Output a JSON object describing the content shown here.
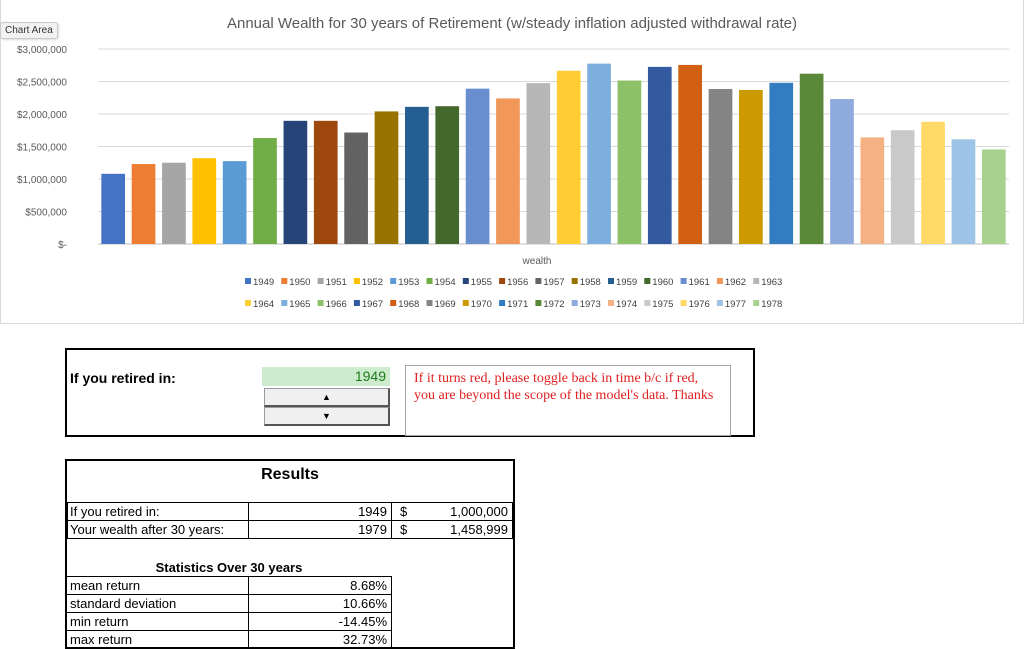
{
  "chart_area_tag": "Chart Area",
  "chart_data": {
    "type": "bar",
    "title": "Annual Wealth for 30 years of Retirement (w/steady inflation adjusted withdrawal rate)",
    "xlabel": "wealth",
    "ylabel": "",
    "ylim": [
      0,
      3000000
    ],
    "y_ticks": [
      "$3,000,000",
      "$2,500,000",
      "$2,000,000",
      "$1,500,000",
      "$1,000,000",
      "$500,000",
      "$-"
    ],
    "y_tick_values": [
      3000000,
      2500000,
      2000000,
      1500000,
      1000000,
      500000,
      0
    ],
    "grid": true,
    "legend_position": "bottom",
    "series": [
      {
        "name": "1949",
        "value": 1080000,
        "color": "#4472c4"
      },
      {
        "name": "1950",
        "value": 1230000,
        "color": "#ed7d31"
      },
      {
        "name": "1951",
        "value": 1250000,
        "color": "#a5a5a5"
      },
      {
        "name": "1952",
        "value": 1320000,
        "color": "#ffc000"
      },
      {
        "name": "1953",
        "value": 1275000,
        "color": "#5b9bd5"
      },
      {
        "name": "1954",
        "value": 1630000,
        "color": "#70ad47"
      },
      {
        "name": "1955",
        "value": 1895000,
        "color": "#264478"
      },
      {
        "name": "1956",
        "value": 1895000,
        "color": "#9e480e"
      },
      {
        "name": "1957",
        "value": 1715000,
        "color": "#636363"
      },
      {
        "name": "1958",
        "value": 2040000,
        "color": "#997300"
      },
      {
        "name": "1959",
        "value": 2110000,
        "color": "#255e91"
      },
      {
        "name": "1960",
        "value": 2120000,
        "color": "#43682b"
      },
      {
        "name": "1961",
        "value": 2390000,
        "color": "#698ed0"
      },
      {
        "name": "1962",
        "value": 2240000,
        "color": "#f1975a"
      },
      {
        "name": "1963",
        "value": 2475000,
        "color": "#b7b7b7"
      },
      {
        "name": "1964",
        "value": 2665000,
        "color": "#ffcd33"
      },
      {
        "name": "1965",
        "value": 2775000,
        "color": "#7cafdd"
      },
      {
        "name": "1966",
        "value": 2515000,
        "color": "#8cc168"
      },
      {
        "name": "1967",
        "value": 2725000,
        "color": "#335aa1"
      },
      {
        "name": "1968",
        "value": 2755000,
        "color": "#d26012"
      },
      {
        "name": "1969",
        "value": 2385000,
        "color": "#848484"
      },
      {
        "name": "1970",
        "value": 2370000,
        "color": "#cc9a00"
      },
      {
        "name": "1971",
        "value": 2480000,
        "color": "#327dc2"
      },
      {
        "name": "1972",
        "value": 2620000,
        "color": "#5a8a39"
      },
      {
        "name": "1973",
        "value": 2230000,
        "color": "#8faadc"
      },
      {
        "name": "1974",
        "value": 1640000,
        "color": "#f4b183"
      },
      {
        "name": "1975",
        "value": 1750000,
        "color": "#c9c9c9"
      },
      {
        "name": "1976",
        "value": 1880000,
        "color": "#ffd966"
      },
      {
        "name": "1977",
        "value": 1610000,
        "color": "#9dc3e6"
      },
      {
        "name": "1978",
        "value": 1455000,
        "color": "#a9d18e"
      }
    ]
  },
  "control": {
    "retire_label": "If you retired in:",
    "year_value": "1949",
    "spin_up_glyph": "▲",
    "spin_down_glyph": "▼",
    "note": "If it turns red, please toggle back in time b/c if red, you are beyond the scope of the model's data. Thanks"
  },
  "results": {
    "title": "Results",
    "rows": [
      {
        "label": "If you retired in:",
        "year": "1949",
        "currency": "$",
        "amount": "1,000,000"
      },
      {
        "label": "Your wealth after 30 years:",
        "year": "1979",
        "currency": "$",
        "amount": "1,458,999"
      }
    ],
    "stats_title": "Statistics Over 30 years",
    "stats": [
      {
        "label": "mean return",
        "value": "8.68%"
      },
      {
        "label": "standard deviation",
        "value": "10.66%"
      },
      {
        "label": "min return",
        "value": "-14.45%"
      },
      {
        "label": "max return",
        "value": "32.73%"
      }
    ]
  }
}
